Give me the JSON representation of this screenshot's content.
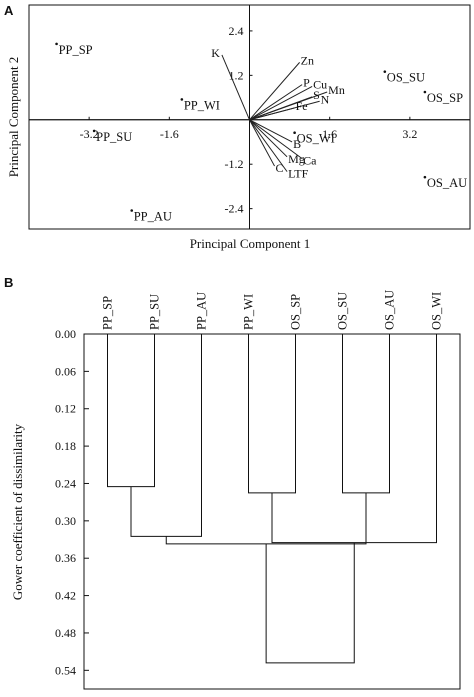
{
  "chart_data": [
    {
      "type": "scatter",
      "panel": "A",
      "xlabel": "Principal Component 1",
      "ylabel": "Principal Component 2",
      "xlim": [
        -4.4,
        4.4
      ],
      "ylim": [
        -2.95,
        3.1
      ],
      "xticks": [
        {
          "value": -3.2,
          "label": "-3.2"
        },
        {
          "value": -1.6,
          "label": "-1.6"
        },
        {
          "value": 1.6,
          "label": "1.6"
        },
        {
          "value": 3.2,
          "label": "3.2"
        }
      ],
      "yticks": [
        {
          "value": 2.4,
          "label": "2.4"
        },
        {
          "value": 1.2,
          "label": "1.2"
        },
        {
          "value": -1.2,
          "label": "-1.2"
        },
        {
          "value": -2.4,
          "label": "-2.4"
        }
      ],
      "points": [
        {
          "label": "PP_SP",
          "x": -3.85,
          "y": 2.05
        },
        {
          "label": "PP_SU",
          "x": -3.1,
          "y": -0.3
        },
        {
          "label": "PP_WI",
          "x": -1.35,
          "y": 0.55
        },
        {
          "label": "PP_AU",
          "x": -2.35,
          "y": -2.45
        },
        {
          "label": "OS_SU",
          "x": 2.7,
          "y": 1.3
        },
        {
          "label": "OS_SP",
          "x": 3.5,
          "y": 0.75
        },
        {
          "label": "OS_WI",
          "x": 0.9,
          "y": -0.35
        },
        {
          "label": "OS_AU",
          "x": 3.5,
          "y": -1.55
        }
      ],
      "vectors": [
        {
          "label": "K",
          "x": -0.55,
          "y": 1.75
        },
        {
          "label": "Zn",
          "x": 1.0,
          "y": 1.55
        },
        {
          "label": "P",
          "x": 1.05,
          "y": 0.95
        },
        {
          "label": "Cu",
          "x": 1.25,
          "y": 0.9
        },
        {
          "label": "Mn",
          "x": 1.55,
          "y": 0.75
        },
        {
          "label": "S",
          "x": 1.25,
          "y": 0.62
        },
        {
          "label": "N",
          "x": 1.4,
          "y": 0.5
        },
        {
          "label": "Fe",
          "x": 0.9,
          "y": 0.32
        },
        {
          "label": "B",
          "x": 0.85,
          "y": -0.6
        },
        {
          "label": "Mg",
          "x": 0.75,
          "y": -1.0
        },
        {
          "label": "Ca",
          "x": 1.05,
          "y": -1.05
        },
        {
          "label": "C",
          "x": 0.5,
          "y": -1.25
        },
        {
          "label": "LTF",
          "x": 0.75,
          "y": -1.4
        }
      ]
    },
    {
      "type": "dendrogram",
      "panel": "B",
      "ylabel": "Gower coefficient of dissimilarity",
      "ylim": [
        0.0,
        0.57
      ],
      "yticks": [
        "0.00",
        "0.06",
        "0.12",
        "0.18",
        "0.24",
        "0.30",
        "0.36",
        "0.42",
        "0.48",
        "0.54"
      ],
      "leaves": [
        "PP_SP",
        "PP_SU",
        "PP_AU",
        "PP_WI",
        "OS_SP",
        "OS_SU",
        "OS_AU",
        "OS_WI"
      ],
      "merges": [
        {
          "left": 0,
          "right": 1,
          "height": 0.245
        },
        {
          "left": 3,
          "right": 4,
          "height": 0.255
        },
        {
          "left": 5,
          "right": 6,
          "height": 0.255
        },
        {
          "left": 2,
          "right": 8,
          "height": 0.325
        },
        {
          "left": 7,
          "right": 9,
          "height": 0.335
        },
        {
          "left": 11,
          "right": 10,
          "height": 0.337
        },
        {
          "left": 12,
          "right": 13,
          "height": 0.528
        }
      ]
    }
  ],
  "labels": {
    "panel_a": "A",
    "panel_b": "B"
  }
}
